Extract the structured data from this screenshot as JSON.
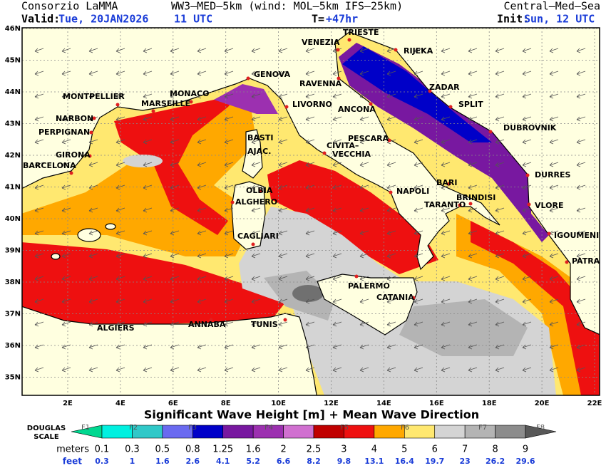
{
  "header": {
    "source": "Consorzio LaMMA",
    "model": "WW3–MED–5km (wind: MOL–5km IFS–25km)",
    "domain": "Central–Med–Sea",
    "valid_label": "Valid:",
    "valid_date": "Tue, 20JAN2026",
    "valid_time": "11 UTC",
    "step_label": "T=",
    "step": "+47hr",
    "init_label": "Init:",
    "init": "Sun, 12 UTC"
  },
  "map": {
    "lat_labels": [
      "46N",
      "45N",
      "44N",
      "43N",
      "42N",
      "41N",
      "40N",
      "39N",
      "38N",
      "37N",
      "36N",
      "35N"
    ],
    "lon_labels": [
      "2E",
      "4E",
      "6E",
      "8E",
      "10E",
      "12E",
      "14E",
      "16E",
      "18E",
      "20E",
      "22E"
    ],
    "cities": [
      "TRIESTE",
      "VENEZIA",
      "RIJEKA",
      "RAVENNA",
      "ZADAR",
      "GENOVA",
      "MONACO",
      "MONTPELLIER",
      "MARSEILLE",
      "LIVORNO",
      "ANCONA",
      "SPLIT",
      "NARBON",
      "PERPIGNAN",
      "DUBROVNIK",
      "BASTI",
      "AJAC.",
      "PESCARA",
      "CIVITA–",
      "VECCHIA",
      "GIRONA",
      "BARCELONA",
      "DURRES",
      "BARI",
      "NAPOLI",
      "OLBIA",
      "BRINDISI",
      "ALGHERO",
      "TARANTO",
      "VLORE",
      "CAGLIARI",
      "IGOUMENITSA",
      "PATRAS",
      "PALERMO",
      "CATANIA",
      "ALGIERS",
      "ANNABA",
      "TUNIS"
    ]
  },
  "legend": {
    "title": "Significant Wave Height [m] + Mean Wave Direction",
    "scale_label": [
      "DOUGLAS",
      "SCALE"
    ],
    "douglas": [
      "F1",
      "F2",
      "F3",
      "F4",
      "F5",
      "F6",
      "F7",
      "F8"
    ],
    "meters_label": "meters",
    "meters": [
      0.1,
      0.3,
      0.5,
      0.8,
      1.25,
      1.6,
      2,
      2.5,
      3,
      4,
      5,
      6,
      7,
      8,
      9
    ],
    "feet_label": "feet",
    "feet": [
      0.3,
      1,
      1.6,
      2.6,
      4.1,
      5.2,
      6.6,
      8.2,
      9.8,
      13.1,
      16.4,
      19.7,
      23,
      26.2,
      29.6
    ],
    "colors": [
      "#00d890",
      "#00f0e0",
      "#30c8c8",
      "#6a6af0",
      "#0000c8",
      "#7818a0",
      "#9c30b0",
      "#d070d0",
      "#c00000",
      "#ee1010",
      "#ffa800",
      "#ffe870",
      "#d4d4d4",
      "#b4b4b4",
      "#8c8c8c",
      "#585858"
    ]
  }
}
